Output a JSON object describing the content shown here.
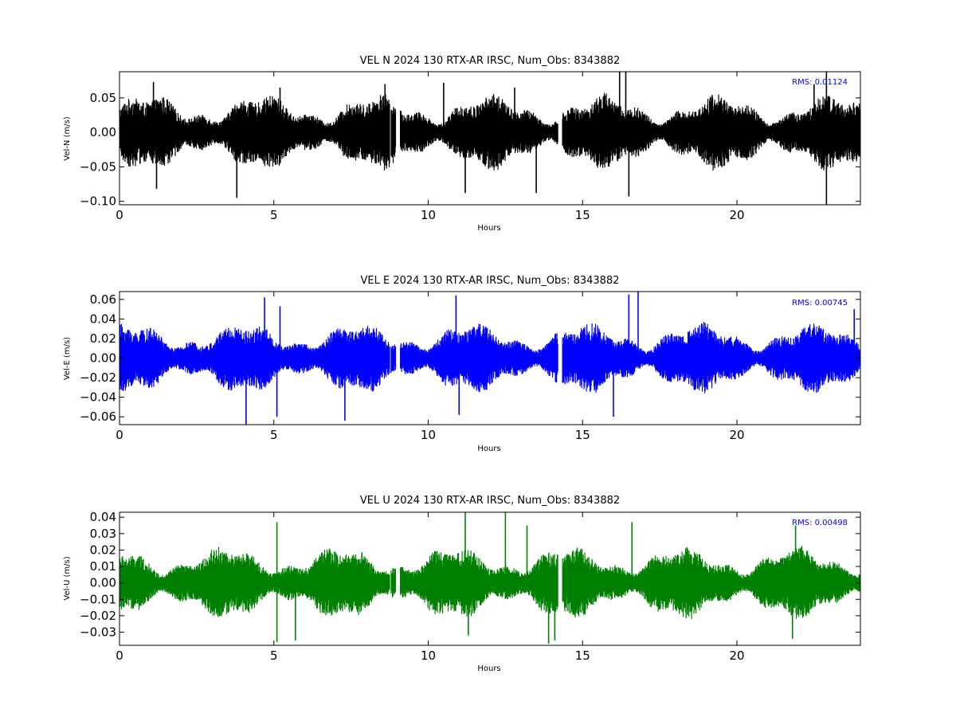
{
  "chart_data": [
    {
      "type": "line",
      "title": "VEL N 2024 130 RTX-AR  IRSC, Num_Obs: 8343882",
      "xlabel": "Hours",
      "ylabel": "Vel-N (m/s)",
      "xlim": [
        0,
        24
      ],
      "ylim": [
        -0.105,
        0.088
      ],
      "xticks": [
        "0",
        "5",
        "10",
        "15",
        "20"
      ],
      "yticks": [
        "0.05",
        "0.00",
        "−0.05",
        "−0.10"
      ],
      "ytick_values": [
        0.05,
        0.0,
        -0.05,
        -0.1
      ],
      "annotation": "RMS:  0.01124",
      "annotation_color": "#0000ff",
      "line_color": "#000000",
      "grid": false,
      "series": [
        {
          "typical_envelope": [
            -0.04,
            0.04
          ],
          "segments": [
            [
              0.0,
              8.75
            ],
            [
              8.8,
              8.95
            ],
            [
              9.1,
              14.2
            ],
            [
              14.35,
              24.0
            ]
          ],
          "spikes": [
            {
              "x": 1.1,
              "y": 0.073
            },
            {
              "x": 1.2,
              "y": -0.082
            },
            {
              "x": 3.8,
              "y": -0.095
            },
            {
              "x": 5.2,
              "y": 0.065
            },
            {
              "x": 8.6,
              "y": 0.07
            },
            {
              "x": 10.5,
              "y": 0.072
            },
            {
              "x": 11.2,
              "y": -0.088
            },
            {
              "x": 12.8,
              "y": 0.065
            },
            {
              "x": 13.5,
              "y": -0.088
            },
            {
              "x": 16.2,
              "y": 0.088
            },
            {
              "x": 16.4,
              "y": 0.088
            },
            {
              "x": 16.5,
              "y": -0.093
            },
            {
              "x": 22.5,
              "y": 0.07
            },
            {
              "x": 22.9,
              "y": 0.088
            },
            {
              "x": 22.9,
              "y": -0.105
            }
          ]
        }
      ]
    },
    {
      "type": "line",
      "title": "VEL E 2024 130 RTX-AR  IRSC, Num_Obs: 8343882",
      "xlabel": "Hours",
      "ylabel": "Vel-E (m/s)",
      "xlim": [
        0,
        24
      ],
      "ylim": [
        -0.068,
        0.068
      ],
      "xticks": [
        "0",
        "5",
        "10",
        "15",
        "20"
      ],
      "yticks": [
        "0.06",
        "0.04",
        "0.02",
        "0.00",
        "−0.02",
        "−0.04",
        "−0.06"
      ],
      "ytick_values": [
        0.06,
        0.04,
        0.02,
        0.0,
        -0.02,
        -0.04,
        -0.06
      ],
      "annotation": "RMS:  0.00745",
      "annotation_color": "#0000ff",
      "line_color": "#0000ff",
      "grid": false,
      "series": [
        {
          "typical_envelope": [
            -0.026,
            0.026
          ],
          "segments": [
            [
              0.0,
              8.75
            ],
            [
              8.8,
              8.95
            ],
            [
              9.1,
              14.2
            ],
            [
              14.35,
              24.0
            ]
          ],
          "spikes": [
            {
              "x": 4.1,
              "y": -0.068
            },
            {
              "x": 4.7,
              "y": 0.062
            },
            {
              "x": 5.2,
              "y": 0.053
            },
            {
              "x": 5.1,
              "y": -0.06
            },
            {
              "x": 7.3,
              "y": -0.064
            },
            {
              "x": 10.9,
              "y": 0.064
            },
            {
              "x": 11.0,
              "y": -0.058
            },
            {
              "x": 16.5,
              "y": 0.065
            },
            {
              "x": 16.8,
              "y": 0.068
            },
            {
              "x": 16.0,
              "y": -0.06
            },
            {
              "x": 23.8,
              "y": 0.05
            }
          ]
        }
      ]
    },
    {
      "type": "line",
      "title": "VEL U 2024 130 RTX-AR  IRSC, Num_Obs: 8343882",
      "xlabel": "Hours",
      "ylabel": "Vel-U (m/s)",
      "xlim": [
        0,
        24
      ],
      "ylim": [
        -0.038,
        0.043
      ],
      "xticks": [
        "0",
        "5",
        "10",
        "15",
        "20"
      ],
      "yticks": [
        "0.04",
        "0.03",
        "0.02",
        "0.01",
        "0.00",
        "−0.01",
        "−0.02",
        "−0.03"
      ],
      "ytick_values": [
        0.04,
        0.03,
        0.02,
        0.01,
        0.0,
        -0.01,
        -0.02,
        -0.03
      ],
      "annotation": "RMS:  0.00498",
      "annotation_color": "#0000ff",
      "line_color": "#008000",
      "grid": false,
      "series": [
        {
          "typical_envelope": [
            -0.016,
            0.016
          ],
          "segments": [
            [
              0.0,
              8.75
            ],
            [
              8.8,
              8.95
            ],
            [
              9.1,
              14.2
            ],
            [
              14.35,
              24.0
            ]
          ],
          "spikes": [
            {
              "x": 5.1,
              "y": 0.037
            },
            {
              "x": 5.1,
              "y": -0.036
            },
            {
              "x": 5.7,
              "y": -0.035
            },
            {
              "x": 11.2,
              "y": 0.043
            },
            {
              "x": 12.5,
              "y": 0.043
            },
            {
              "x": 11.3,
              "y": -0.032
            },
            {
              "x": 13.9,
              "y": -0.037
            },
            {
              "x": 14.1,
              "y": -0.035
            },
            {
              "x": 13.2,
              "y": 0.035
            },
            {
              "x": 16.6,
              "y": 0.037
            },
            {
              "x": 21.9,
              "y": 0.035
            },
            {
              "x": 21.8,
              "y": -0.034
            }
          ]
        }
      ]
    }
  ]
}
